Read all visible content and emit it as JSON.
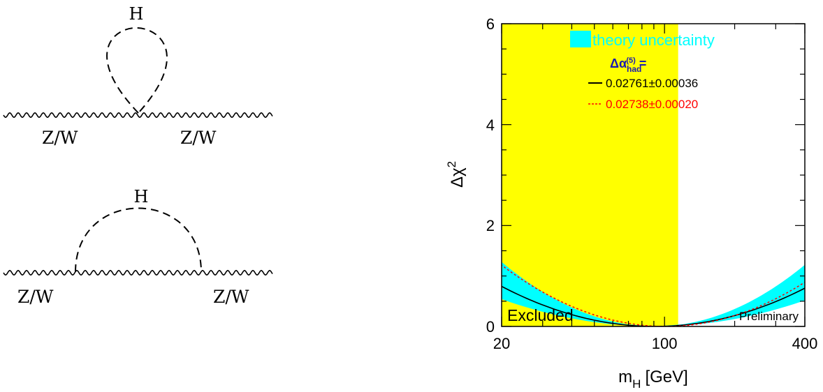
{
  "diagrams": {
    "top": {
      "loop_label": "H",
      "left_label": "Z/W",
      "right_label": "Z/W"
    },
    "bottom": {
      "loop_label": "H",
      "left_label": "Z/W",
      "right_label": "Z/W"
    }
  },
  "colors": {
    "excluded_region": "#ffff00",
    "theory_band": "#00ffff",
    "fit_1": "#000000",
    "fit_2": "#ff0000",
    "legend_header": "#1a1ab0"
  },
  "chart_data": {
    "type": "line",
    "xlabel": "m",
    "xlabel_sub": "H",
    "xlabel_unit": "[GeV]",
    "ylabel": "Δχ",
    "ylabel_sup": "2",
    "x_scale": "log",
    "xlim": [
      20,
      400
    ],
    "ylim": [
      0,
      6
    ],
    "x_ticks": [
      20,
      100,
      400
    ],
    "y_ticks": [
      0,
      2,
      4,
      6
    ],
    "excluded_region": {
      "x_range": [
        20,
        114.4
      ],
      "label": "Excluded"
    },
    "annotation": "Preliminary",
    "legend": {
      "band_label": "theory uncertainty",
      "header": "Δα",
      "header_sub": "had",
      "header_sup": "(5)",
      "header_suffix": " =",
      "entries": [
        {
          "label": "0.02761±0.00036",
          "style": "solid",
          "color": "#000000"
        },
        {
          "label": "0.02738±0.00020",
          "style": "dotted",
          "color": "#ff0000"
        }
      ]
    },
    "series": [
      {
        "name": "0.02761±0.00036",
        "style": "solid",
        "minimum_x": 91,
        "curve_param": 1.7,
        "band": {
          "minimum_x": 91,
          "inner_param": 1.34,
          "outer_param": 2.06
        }
      },
      {
        "name": "0.02738±0.00020",
        "style": "dotted",
        "minimum_x": 101,
        "curve_param": 1.47
      }
    ]
  }
}
